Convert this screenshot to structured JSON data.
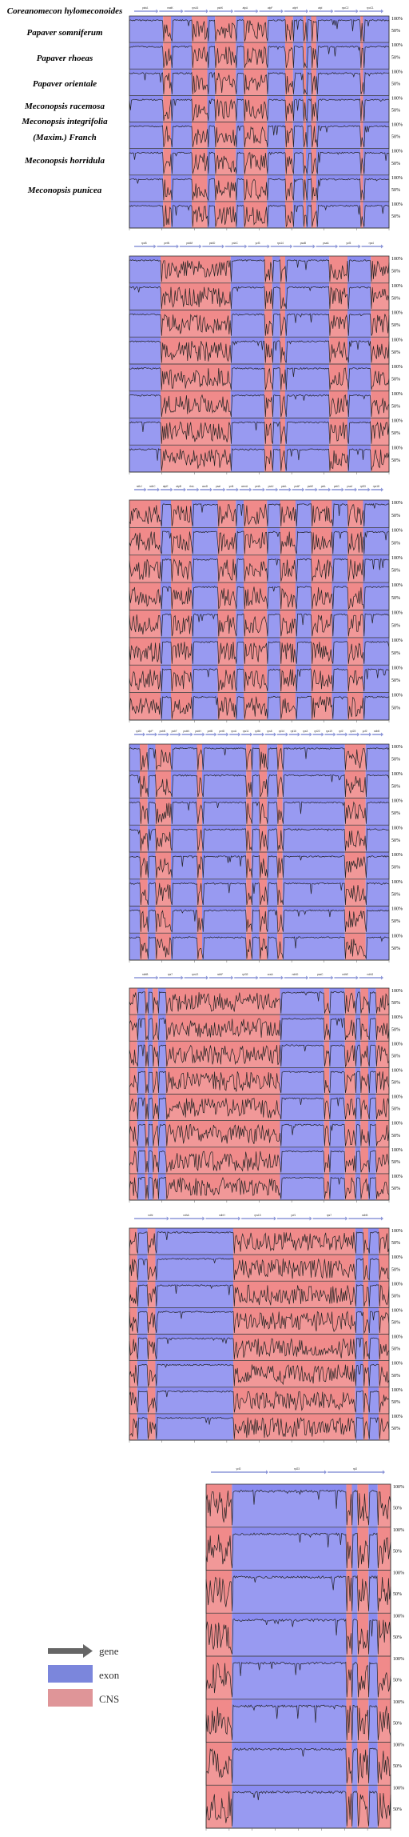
{
  "taxa": [
    "Coreanomecon hylomeconoides",
    "Papaver somniferum",
    "Papaver rhoeas",
    "Papaver orientale",
    "Meconopsis racemosa",
    "Meconopsis integrifolia",
    "(Maxim.) Franch",
    "Meconopsis horridula",
    "Meconopsis punicea"
  ],
  "legend": {
    "items": [
      {
        "label": "gene",
        "swatch": "arrow",
        "color": "#666666"
      },
      {
        "label": "exon",
        "swatch": "box",
        "color": "#7b86dc"
      },
      {
        "label": "CNS",
        "swatch": "box",
        "color": "#df9598"
      }
    ]
  },
  "colors": {
    "exon": "#8a8cf0",
    "cns": "#f08a8a",
    "gene_arrow": "#8c96d8"
  },
  "axis_ticks": [
    "100%",
    "50%"
  ],
  "chart_data": [
    {
      "type": "area",
      "panel": 1,
      "genes": [
        "psbA",
        "matK",
        "rps16",
        "psbK",
        "atpA",
        "atpF",
        "atpH",
        "atpI",
        "rpoC2",
        "rpoC1"
      ],
      "tracks": 8,
      "ylim": [
        50,
        100
      ],
      "segments": [
        [
          "e",
          0.0,
          0.13
        ],
        [
          "c",
          0.13,
          0.16
        ],
        [
          "e",
          0.16,
          0.24
        ],
        [
          "c",
          0.24,
          0.3
        ],
        [
          "e",
          0.3,
          0.33
        ],
        [
          "c",
          0.33,
          0.41
        ],
        [
          "e",
          0.41,
          0.44
        ],
        [
          "c",
          0.44,
          0.53
        ],
        [
          "e",
          0.53,
          0.6
        ],
        [
          "c",
          0.6,
          0.63
        ],
        [
          "e",
          0.63,
          0.67
        ],
        [
          "c",
          0.67,
          0.68
        ],
        [
          "e",
          0.68,
          0.7
        ],
        [
          "c",
          0.7,
          0.72
        ],
        [
          "e",
          0.72,
          0.89
        ],
        [
          "c",
          0.89,
          0.9
        ],
        [
          "e",
          0.9,
          1.0
        ]
      ]
    },
    {
      "type": "area",
      "panel": 2,
      "genes": [
        "rpoB",
        "petN",
        "psbM",
        "psbD",
        "psbC",
        "ycf3",
        "rps14",
        "psaB",
        "psaA",
        "ycf3",
        "rps4"
      ],
      "tracks": 8,
      "ylim": [
        50,
        100
      ],
      "segments": [
        [
          "e",
          0.0,
          0.12
        ],
        [
          "c",
          0.12,
          0.39
        ],
        [
          "e",
          0.39,
          0.52
        ],
        [
          "c",
          0.52,
          0.55
        ],
        [
          "e",
          0.55,
          0.58
        ],
        [
          "c",
          0.58,
          0.6
        ],
        [
          "e",
          0.6,
          0.77
        ],
        [
          "c",
          0.77,
          0.84
        ],
        [
          "e",
          0.84,
          0.93
        ],
        [
          "c",
          0.93,
          1.0
        ]
      ]
    },
    {
      "type": "area",
      "panel": 3,
      "genes": [
        "ndhJ",
        "ndhC",
        "atpE",
        "atpB",
        "rbcL",
        "accD",
        "psaI",
        "ycf4",
        "cemA",
        "petA",
        "psbJ",
        "psbL",
        "psbF",
        "psbE",
        "petL",
        "petG",
        "psaJ",
        "rpl33",
        "rps18"
      ],
      "tracks": 8,
      "ylim": [
        50,
        100
      ],
      "segments": [
        [
          "c",
          0.0,
          0.12
        ],
        [
          "e",
          0.12,
          0.16
        ],
        [
          "c",
          0.16,
          0.24
        ],
        [
          "e",
          0.24,
          0.34
        ],
        [
          "c",
          0.34,
          0.41
        ],
        [
          "e",
          0.41,
          0.44
        ],
        [
          "c",
          0.44,
          0.53
        ],
        [
          "e",
          0.53,
          0.58
        ],
        [
          "c",
          0.58,
          0.64
        ],
        [
          "e",
          0.64,
          0.7
        ],
        [
          "c",
          0.7,
          0.78
        ],
        [
          "e",
          0.78,
          0.84
        ],
        [
          "c",
          0.84,
          0.9
        ],
        [
          "e",
          0.9,
          1.0
        ]
      ]
    },
    {
      "type": "area",
      "panel": 4,
      "genes": [
        "rpl20",
        "clpP",
        "psbB",
        "psbT",
        "psbN",
        "psbH",
        "petB",
        "petD",
        "rpoA",
        "rps11",
        "rpl36",
        "rps8",
        "rpl14",
        "rpl16",
        "rps3",
        "rpl22",
        "rps19",
        "rpl2",
        "rpl23",
        "ycf2",
        "ndhB"
      ],
      "tracks": 8,
      "ylim": [
        50,
        100
      ],
      "segments": [
        [
          "e",
          0.0,
          0.04
        ],
        [
          "c",
          0.04,
          0.07
        ],
        [
          "e",
          0.07,
          0.1
        ],
        [
          "c",
          0.1,
          0.16
        ],
        [
          "e",
          0.16,
          0.26
        ],
        [
          "c",
          0.26,
          0.28
        ],
        [
          "e",
          0.28,
          0.45
        ],
        [
          "c",
          0.45,
          0.47
        ],
        [
          "e",
          0.47,
          0.5
        ],
        [
          "c",
          0.5,
          0.53
        ],
        [
          "e",
          0.53,
          0.57
        ],
        [
          "c",
          0.57,
          0.59
        ],
        [
          "e",
          0.59,
          0.83
        ],
        [
          "c",
          0.83,
          0.91
        ],
        [
          "e",
          0.91,
          1.0
        ]
      ]
    },
    {
      "type": "area",
      "panel": 5,
      "genes": [
        "ndhB",
        "rps7",
        "rps12",
        "ndhF",
        "rpl32",
        "ccsA",
        "ndhD",
        "psaC",
        "ndhE",
        "ndhG"
      ],
      "tracks": 8,
      "ylim": [
        50,
        100
      ],
      "segments": [
        [
          "c",
          0.0,
          0.03
        ],
        [
          "e",
          0.03,
          0.06
        ],
        [
          "c",
          0.06,
          0.07
        ],
        [
          "e",
          0.07,
          0.09
        ],
        [
          "c",
          0.09,
          0.11
        ],
        [
          "e",
          0.11,
          0.14
        ],
        [
          "c",
          0.14,
          0.58
        ],
        [
          "e",
          0.58,
          0.75
        ],
        [
          "c",
          0.75,
          0.77
        ],
        [
          "e",
          0.77,
          0.83
        ],
        [
          "c",
          0.83,
          0.87
        ],
        [
          "e",
          0.87,
          0.89
        ],
        [
          "c",
          0.89,
          0.92
        ],
        [
          "e",
          0.92,
          0.95
        ],
        [
          "c",
          0.95,
          1.0
        ]
      ]
    },
    {
      "type": "area",
      "panel": 6,
      "genes": [
        "ndhI",
        "ndhA",
        "ndhH",
        "rps15",
        "ycf1",
        "rps7",
        "ndhB"
      ],
      "tracks": 8,
      "ylim": [
        50,
        100
      ],
      "segments": [
        [
          "c",
          0.0,
          0.03
        ],
        [
          "e",
          0.03,
          0.07
        ],
        [
          "c",
          0.07,
          0.1
        ],
        [
          "e",
          0.1,
          0.4
        ],
        [
          "c",
          0.4,
          0.87
        ],
        [
          "e",
          0.87,
          0.9
        ],
        [
          "c",
          0.9,
          0.92
        ],
        [
          "e",
          0.92,
          0.96
        ],
        [
          "c",
          0.96,
          1.0
        ]
      ]
    },
    {
      "type": "area",
      "panel": 7,
      "genes": [
        "ycf2",
        "rpl23",
        "rpl2"
      ],
      "tracks": 8,
      "ylim": [
        50,
        100
      ],
      "segments": [
        [
          "c",
          0.0,
          0.14
        ],
        [
          "e",
          0.14,
          0.76
        ],
        [
          "c",
          0.76,
          0.79
        ],
        [
          "e",
          0.79,
          0.82
        ],
        [
          "c",
          0.82,
          0.88
        ],
        [
          "e",
          0.88,
          0.93
        ],
        [
          "c",
          0.93,
          1.0
        ]
      ]
    }
  ]
}
